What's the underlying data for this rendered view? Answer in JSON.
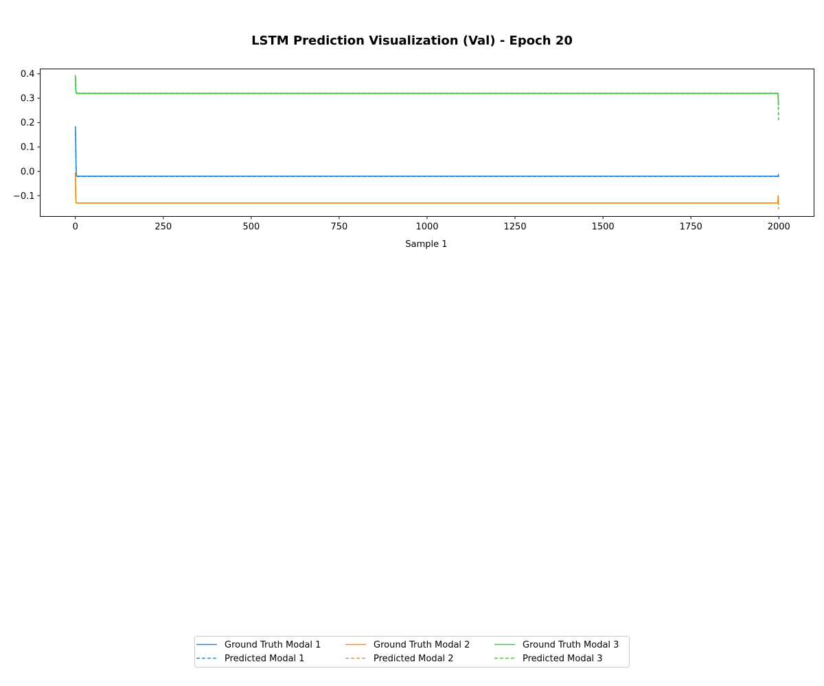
{
  "chart_data": {
    "type": "line",
    "title": "LSTM Prediction Visualization (Val) - Epoch 20",
    "xlabel": "Sample 1",
    "ylabel": "",
    "xlim": [
      -100,
      2100
    ],
    "ylim": [
      -0.185,
      0.42
    ],
    "xticks": [
      {
        "value": 0,
        "label": "0"
      },
      {
        "value": 250,
        "label": "250"
      },
      {
        "value": 500,
        "label": "500"
      },
      {
        "value": 750,
        "label": "750"
      },
      {
        "value": 1000,
        "label": "1000"
      },
      {
        "value": 1250,
        "label": "1250"
      },
      {
        "value": 1500,
        "label": "1500"
      },
      {
        "value": 1750,
        "label": "1750"
      },
      {
        "value": 2000,
        "label": "2000"
      }
    ],
    "yticks": [
      {
        "value": -0.1,
        "label": "−0.1"
      },
      {
        "value": 0.0,
        "label": "0.0"
      },
      {
        "value": 0.1,
        "label": "0.1"
      },
      {
        "value": 0.2,
        "label": "0.2"
      },
      {
        "value": 0.3,
        "label": "0.3"
      },
      {
        "value": 0.4,
        "label": "0.4"
      }
    ],
    "grid": false,
    "legend_position": "bottom-center",
    "legend_columns": 3,
    "series": [
      {
        "name": "Ground Truth Modal 1",
        "color": "#1e88e5",
        "style": "solid",
        "x": [
          0,
          1,
          2,
          3,
          4,
          2000,
          1998,
          1999
        ],
        "y": [
          0.185,
          0.12,
          0.03,
          -0.015,
          -0.02,
          -0.02,
          -0.02,
          -0.012
        ]
      },
      {
        "name": "Predicted Modal 1",
        "color": "#1e88e5",
        "style": "dashed",
        "x": [
          0,
          1,
          2,
          3,
          4,
          1996,
          1997,
          1998,
          1999
        ],
        "y": [
          0.18,
          0.11,
          0.02,
          -0.015,
          -0.021,
          -0.021,
          -0.021,
          -0.016,
          -0.01
        ]
      },
      {
        "name": "Ground Truth Modal 2",
        "color": "#ff8c00",
        "style": "solid",
        "x": [
          0,
          1,
          2,
          3,
          1996,
          1997,
          1998,
          1999
        ],
        "y": [
          -0.005,
          -0.09,
          -0.125,
          -0.13,
          -0.13,
          -0.13,
          -0.1,
          -0.13
        ]
      },
      {
        "name": "Predicted Modal 2",
        "color": "#ff8c00",
        "style": "dashed",
        "x": [
          0,
          1,
          2,
          3,
          1996,
          1997,
          1998,
          1999
        ],
        "y": [
          -0.01,
          -0.095,
          -0.128,
          -0.13,
          -0.13,
          -0.13,
          -0.105,
          -0.155
        ]
      },
      {
        "name": "Ground Truth Modal 3",
        "color": "#32cd32",
        "style": "solid",
        "x": [
          0,
          1,
          2,
          3,
          1996,
          1997,
          1998,
          1999
        ],
        "y": [
          0.395,
          0.345,
          0.325,
          0.32,
          0.32,
          0.32,
          0.31,
          0.27
        ]
      },
      {
        "name": "Predicted Modal 3",
        "color": "#32cd32",
        "style": "dashed",
        "x": [
          0,
          1,
          2,
          3,
          1996,
          1997,
          1998,
          1999
        ],
        "y": [
          0.385,
          0.34,
          0.322,
          0.32,
          0.32,
          0.32,
          0.3,
          0.21
        ]
      }
    ]
  }
}
